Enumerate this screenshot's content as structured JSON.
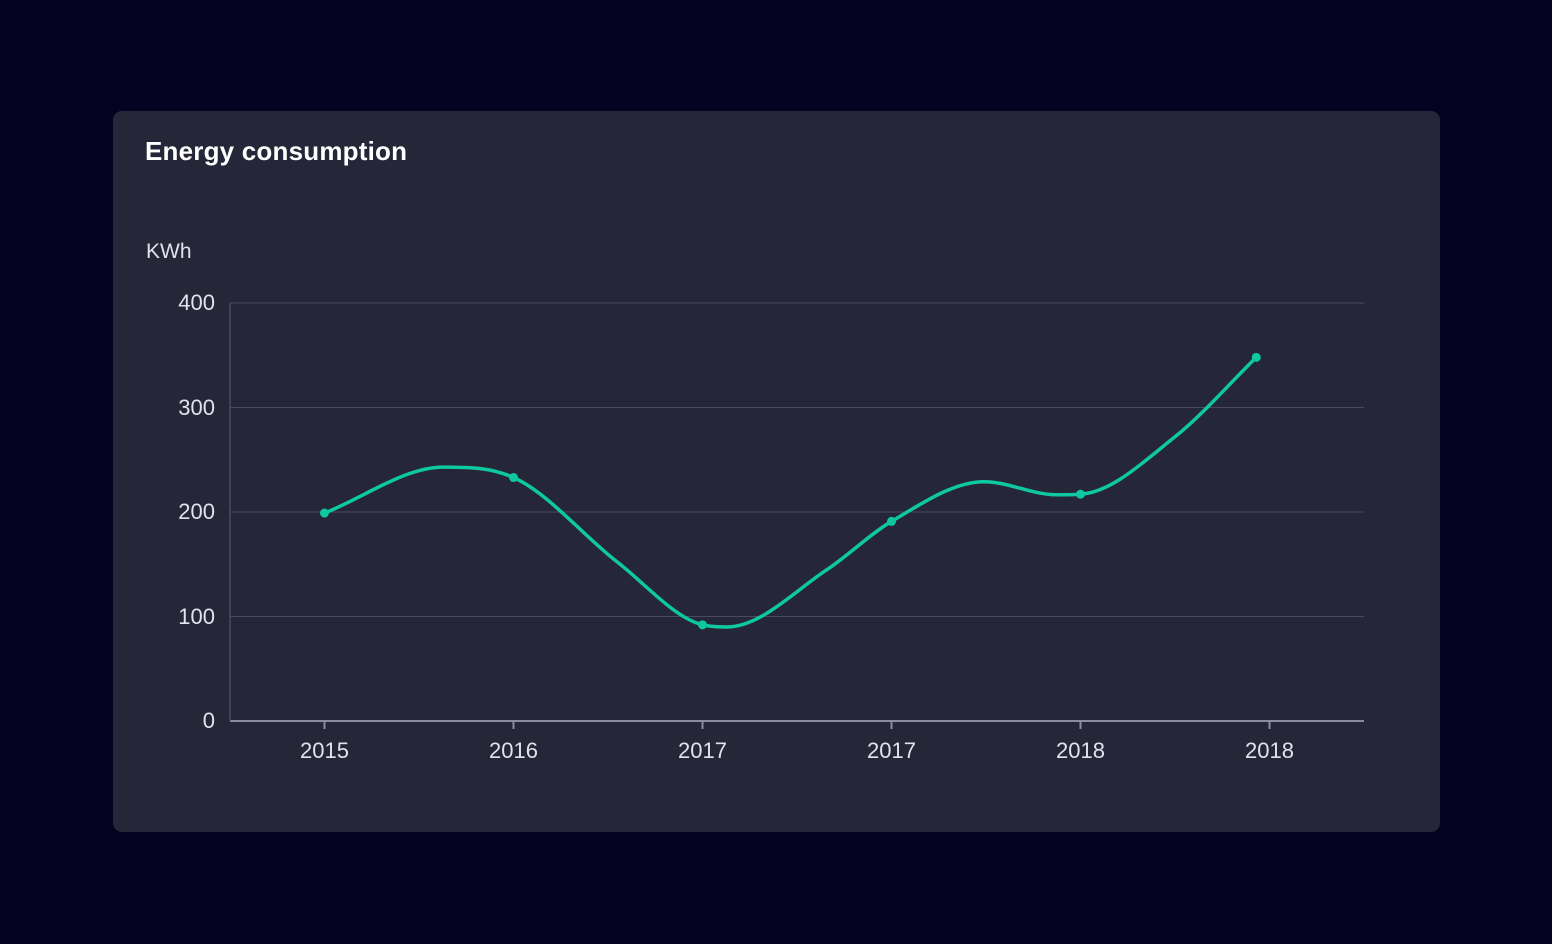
{
  "card": {
    "title": "Energy consumption"
  },
  "chart_data": {
    "type": "line",
    "title": "Energy consumption",
    "ylabel": "KWh",
    "xlabel": "",
    "categories": [
      "2015",
      "2016",
      "2017",
      "2017",
      "2018",
      "2018"
    ],
    "values": [
      199,
      233,
      92,
      191,
      217,
      348
    ],
    "y_ticks": [
      400,
      300,
      200,
      100,
      0
    ],
    "ylim": [
      0,
      400
    ],
    "grid": true,
    "legend_position": "none",
    "smooth": true,
    "point_style": "filled-circle",
    "point_x_units": [
      0,
      1,
      2,
      3,
      4,
      4.93
    ],
    "curve_shape": [
      [
        0,
        199
      ],
      [
        0.63,
        243
      ],
      [
        1,
        233
      ],
      [
        1.55,
        152
      ],
      [
        2,
        92
      ],
      [
        2.13,
        90
      ],
      [
        2.66,
        145
      ],
      [
        3,
        191
      ],
      [
        3.49,
        229
      ],
      [
        3.87,
        216.5
      ],
      [
        4,
        217
      ],
      [
        4.5,
        272
      ],
      [
        4.93,
        348
      ]
    ],
    "colors": {
      "line": "#0dc8a0",
      "grid": "#494961",
      "axis": "#8a8aa1",
      "label": "#e2e2ec",
      "title": "#ffffff",
      "panel_background": "#252638",
      "page_background": "#030321"
    }
  }
}
